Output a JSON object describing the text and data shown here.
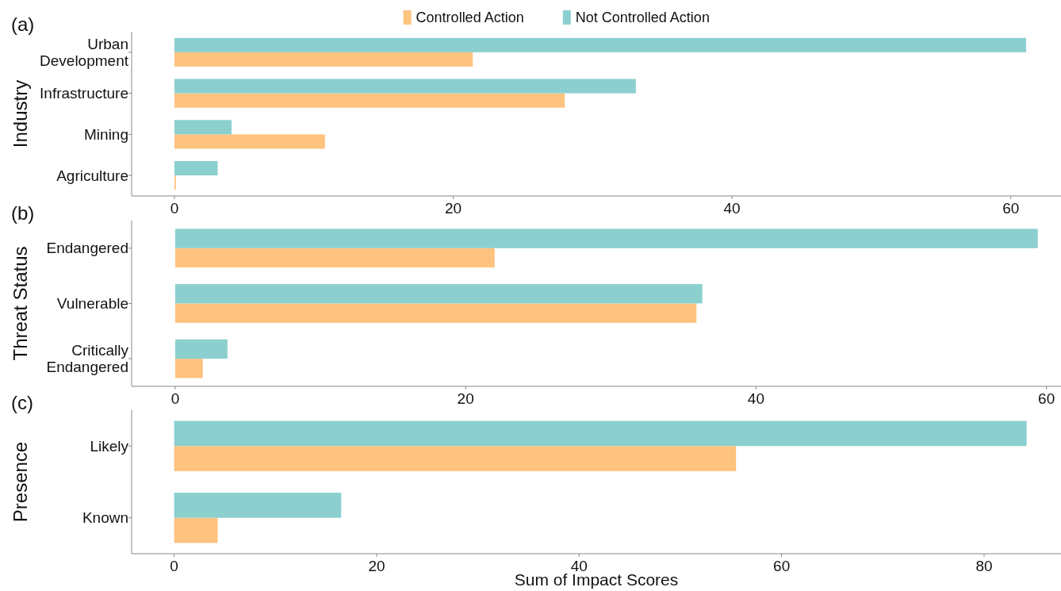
{
  "chart_data": [
    {
      "type": "bar",
      "orientation": "horizontal",
      "title": "(a)",
      "ylabel": "Industry",
      "categories": [
        "Urban Development",
        "Infrastructure",
        "Mining",
        "Agriculture"
      ],
      "series": [
        {
          "name": "Controlled Action",
          "color": "#fec37f",
          "values": [
            21.4,
            28.0,
            10.8,
            0.1
          ]
        },
        {
          "name": "Not Controlled Action",
          "color": "#8ccfcf",
          "values": [
            61.1,
            33.1,
            4.1,
            3.1
          ]
        }
      ],
      "xlim": [
        -3.07,
        63.6
      ],
      "xticks": [
        0,
        20,
        40,
        60
      ],
      "legend": "top",
      "grid": false
    },
    {
      "type": "bar",
      "orientation": "horizontal",
      "title": "(b)",
      "ylabel": "Threat Status",
      "categories": [
        "Endangered",
        "Vulnerable",
        "Critically Endangered"
      ],
      "series": [
        {
          "color": "#fec37f",
          "values": [
            22.0,
            35.9,
            1.9
          ]
        },
        {
          "color": "#8ccfcf",
          "values": [
            59.4,
            36.3,
            3.6
          ]
        }
      ],
      "xlim": [
        -3.0,
        61.0
      ],
      "xticks": [
        0,
        20,
        40,
        60
      ],
      "legend": false,
      "grid": false
    },
    {
      "type": "bar",
      "orientation": "horizontal",
      "title": "(c)",
      "ylabel": "Presence",
      "xlabel": "Sum of Impact Scores",
      "categories": [
        "Likely",
        "Known"
      ],
      "series": [
        {
          "color": "#fec37f",
          "values": [
            55.5,
            4.3
          ]
        },
        {
          "color": "#8ccfcf",
          "values": [
            84.2,
            16.5
          ]
        }
      ],
      "xlim": [
        -4.2,
        87.6
      ],
      "xticks": [
        0,
        20,
        40,
        60,
        80
      ],
      "legend": false,
      "grid": false
    }
  ]
}
